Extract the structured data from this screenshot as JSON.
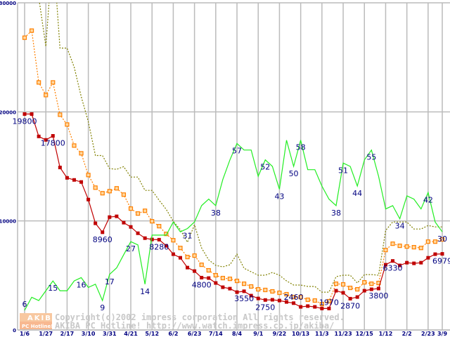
{
  "chart_data": {
    "type": "line",
    "title": "",
    "xlabel": "",
    "ylabel": "",
    "ylim": [
      0,
      30000
    ],
    "grid": true,
    "y_ticks": [
      "0",
      "10000",
      "20000",
      "30000"
    ],
    "y_tick_values": [
      0,
      10000,
      20000,
      30000
    ],
    "x_tick_labels": [
      "1/6",
      "1/27",
      "2/17",
      "3/10",
      "3/31",
      "4/21",
      "5/12",
      "6/2",
      "6/23",
      "7/14",
      "8/4",
      "9/1",
      "9/22",
      "10/13",
      "11/3",
      "11/23",
      "12/15",
      "1/12",
      "2/2",
      "2/23",
      "3/9"
    ],
    "x_tick_indices": [
      0,
      3,
      6,
      9,
      12,
      15,
      18,
      21,
      24,
      27,
      30,
      33,
      36,
      39,
      42,
      45,
      48,
      51,
      54,
      57,
      59
    ],
    "point_count": 60,
    "series": [
      {
        "name": "olive-dotted",
        "color": "#808000",
        "style": "dotted",
        "values": [
          null,
          null,
          30500,
          26000,
          35000,
          25850,
          25850,
          24100,
          21400,
          19100,
          16000,
          16000,
          14800,
          14730,
          14980,
          14020,
          14020,
          12800,
          12800,
          11900,
          11060,
          9970,
          9200,
          8040,
          9650,
          7520,
          6430,
          5920,
          5790,
          5980,
          6950,
          5660,
          5340,
          5020,
          5020,
          5270,
          5020,
          4500,
          4120,
          4120,
          3990,
          3990,
          3470,
          3470,
          4890,
          5020,
          5020,
          4310,
          5080,
          5080,
          5020,
          9130,
          9900,
          9900,
          9900,
          9260,
          9260,
          9580,
          9450,
          9450
        ]
      },
      {
        "name": "orange-dotted",
        "color": "#ff8000",
        "style": "dotted-hollow-squares",
        "values": [
          26800,
          27450,
          22700,
          21540,
          22700,
          19740,
          18840,
          16910,
          16200,
          14210,
          13050,
          12540,
          12730,
          12990,
          12410,
          11130,
          10680,
          10930,
          9970,
          9520,
          8810,
          8230,
          7520,
          6690,
          6820,
          5980,
          5470,
          5020,
          4760,
          4690,
          4500,
          4240,
          3990,
          3730,
          3670,
          3540,
          3410,
          3280,
          3020,
          3020,
          2770,
          2700,
          2380,
          2640,
          4240,
          4180,
          3860,
          3730,
          4370,
          4240,
          4310,
          7330,
          7910,
          7720,
          7650,
          7590,
          7520,
          8100,
          8100,
          8300
        ]
      },
      {
        "name": "red-price",
        "color": "#c00000",
        "style": "solid-squares",
        "values": [
          19800,
          19800,
          17750,
          17430,
          17800,
          14900,
          13950,
          13760,
          13570,
          11960,
          9780,
          8960,
          10350,
          10420,
          9840,
          9450,
          8870,
          8420,
          8300,
          8280,
          7720,
          6950,
          6620,
          5720,
          5400,
          4800,
          4760,
          4310,
          3920,
          3790,
          3470,
          3550,
          3150,
          2890,
          2750,
          2770,
          2700,
          2570,
          2460,
          2120,
          2190,
          2120,
          1970,
          1970,
          3600,
          3410,
          2870,
          3020,
          3600,
          3730,
          3800,
          5980,
          6330,
          5920,
          6170,
          6110,
          6170,
          6620,
          6950,
          6979
        ],
        "labels": [
          {
            "i": 0,
            "text": "19800"
          },
          {
            "i": 4,
            "text": "17800"
          },
          {
            "i": 11,
            "text": "8960"
          },
          {
            "i": 19,
            "text": "8280"
          },
          {
            "i": 25,
            "text": "4800"
          },
          {
            "i": 31,
            "text": "3550"
          },
          {
            "i": 34,
            "text": "2750"
          },
          {
            "i": 38,
            "text": "2460"
          },
          {
            "i": 43,
            "text": "1970"
          },
          {
            "i": 46,
            "text": "2870"
          },
          {
            "i": 50,
            "text": "3800"
          },
          {
            "i": 52,
            "text": "6330"
          },
          {
            "i": 59,
            "text": "6979"
          }
        ]
      },
      {
        "name": "green-count",
        "color": "#22ee22",
        "style": "solid",
        "scale": 300,
        "values": [
          6,
          10,
          9,
          12,
          15,
          12,
          12,
          15,
          16,
          13,
          14,
          9,
          17,
          19,
          23,
          27,
          26,
          14,
          29,
          29,
          29,
          33,
          30,
          31,
          33,
          38,
          40,
          38,
          46,
          52,
          57,
          55,
          55,
          47,
          52,
          50,
          43,
          58,
          50,
          58,
          49,
          49,
          44,
          40,
          38,
          51,
          50,
          44,
          52,
          55,
          47,
          37,
          38,
          34,
          41,
          40,
          37,
          42,
          33,
          30
        ],
        "labels": [
          {
            "i": 0,
            "text": "6"
          },
          {
            "i": 4,
            "text": "15"
          },
          {
            "i": 8,
            "text": "16"
          },
          {
            "i": 11,
            "text": "9"
          },
          {
            "i": 12,
            "text": "17"
          },
          {
            "i": 15,
            "text": "27"
          },
          {
            "i": 17,
            "text": "14"
          },
          {
            "i": 23,
            "text": "31"
          },
          {
            "i": 27,
            "text": "38"
          },
          {
            "i": 30,
            "text": "57"
          },
          {
            "i": 34,
            "text": "52"
          },
          {
            "i": 36,
            "text": "43"
          },
          {
            "i": 38,
            "text": "50"
          },
          {
            "i": 39,
            "text": "58"
          },
          {
            "i": 44,
            "text": "38"
          },
          {
            "i": 45,
            "text": "51"
          },
          {
            "i": 47,
            "text": "44"
          },
          {
            "i": 49,
            "text": "55"
          },
          {
            "i": 53,
            "text": "34"
          },
          {
            "i": 57,
            "text": "42"
          },
          {
            "i": 59,
            "text": "30"
          }
        ]
      }
    ]
  },
  "watermark": {
    "logo_top": "AKIBA",
    "logo_bottom": "PC Hotline!",
    "line1": "Copyright(c)2002 impress corporation All rights reserved.",
    "line2": "AKIBA PC Hotline!  http://www.watch.impress.co.jp/akiba/"
  }
}
